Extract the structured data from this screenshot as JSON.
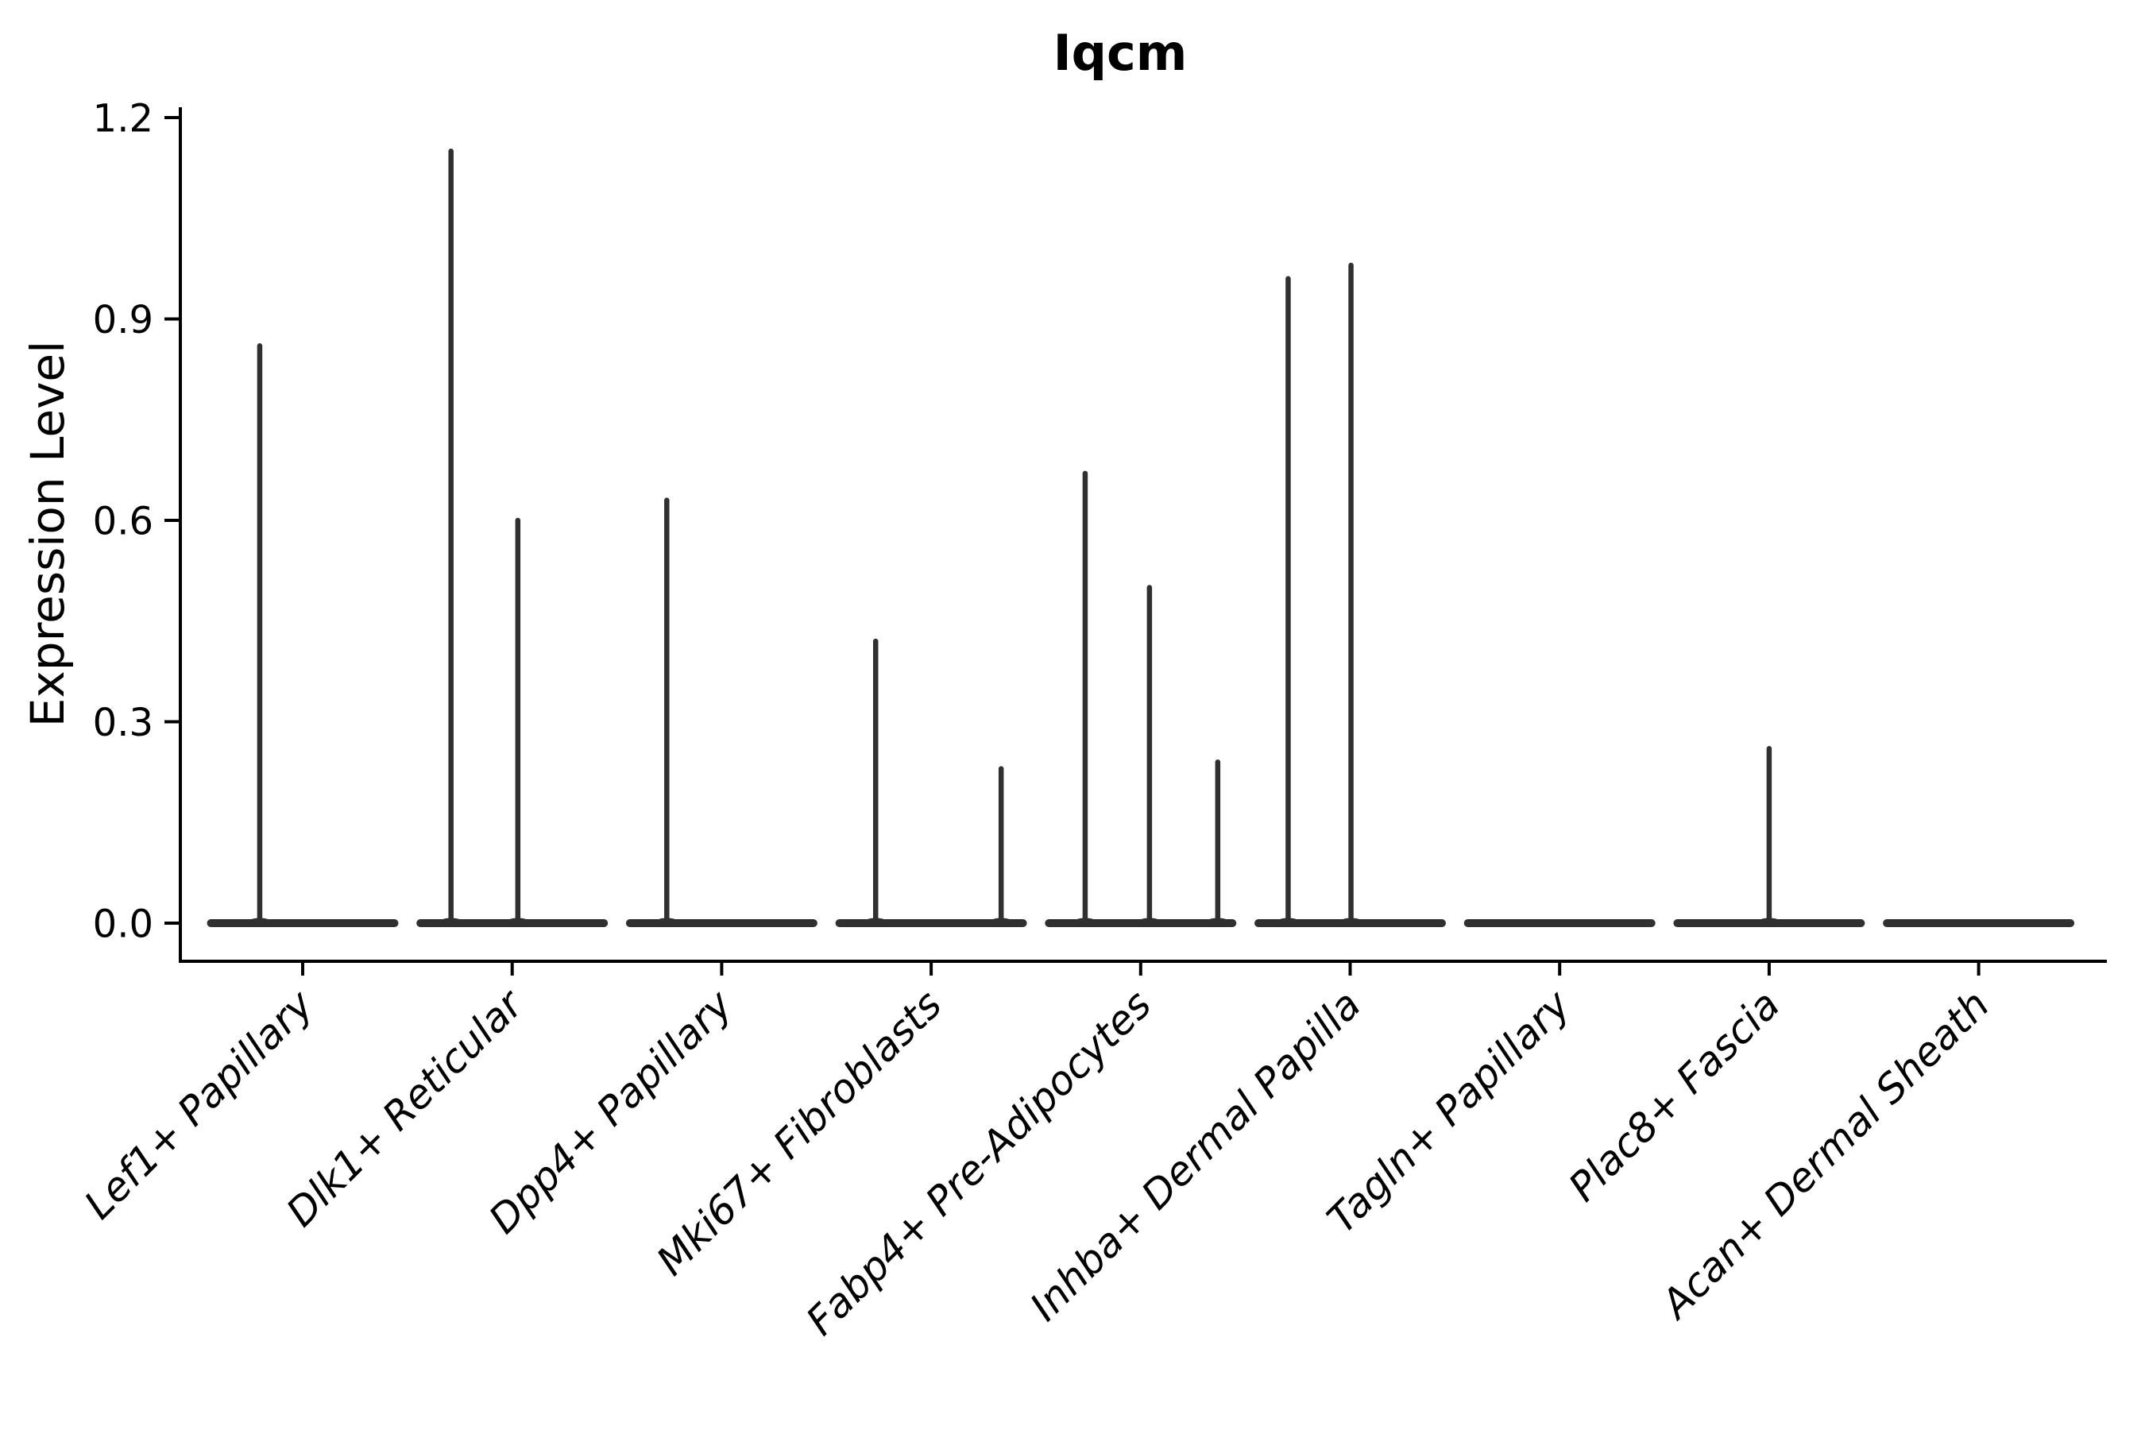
{
  "figure": {
    "kind": "violin-plot-figure"
  },
  "chart_data": {
    "type": "violin",
    "title": "Iqcm",
    "xlabel": "",
    "ylabel": "Expression Level",
    "ylim": [
      -0.06,
      1.22
    ],
    "grid": false,
    "legend": null,
    "yticks": [
      {
        "value": 0.0,
        "label": "0.0"
      },
      {
        "value": 0.3,
        "label": "0.3"
      },
      {
        "value": 0.6,
        "label": "0.6"
      },
      {
        "value": 0.9,
        "label": "0.9"
      },
      {
        "value": 1.2,
        "label": "1.2"
      }
    ],
    "categories": [
      "Lef1+ Papillary",
      "Dlk1+ Reticular",
      "Dpp4+ Papillary",
      "Mki67+ Fibroblasts",
      "Fabp4+ Pre-Adipocytes",
      "Inhba+ Dermal Papilla",
      "Tagln+ Papillary",
      "Plac8+ Fascia",
      "Acan+ Dermal Sheath"
    ],
    "series": [
      {
        "category": "Lef1+ Papillary",
        "baseline_value": 0.0,
        "spikes": [
          {
            "pos": -0.205,
            "value": 0.86
          }
        ]
      },
      {
        "category": "Dlk1+ Reticular",
        "baseline_value": 0.0,
        "spikes": [
          {
            "pos": -0.292,
            "value": 1.15
          },
          {
            "pos": 0.027,
            "value": 0.6
          }
        ]
      },
      {
        "category": "Dpp4+ Papillary",
        "baseline_value": 0.0,
        "spikes": [
          {
            "pos": -0.262,
            "value": 0.63
          }
        ]
      },
      {
        "category": "Mki67+ Fibroblasts",
        "baseline_value": 0.0,
        "spikes": [
          {
            "pos": -0.265,
            "value": 0.42
          },
          {
            "pos": 0.334,
            "value": 0.23
          }
        ]
      },
      {
        "category": "Fabp4+ Pre-Adipocytes",
        "baseline_value": 0.0,
        "spikes": [
          {
            "pos": -0.265,
            "value": 0.67
          },
          {
            "pos": 0.042,
            "value": 0.5
          },
          {
            "pos": 0.368,
            "value": 0.24
          }
        ]
      },
      {
        "category": "Inhba+ Dermal Papilla",
        "baseline_value": 0.0,
        "spikes": [
          {
            "pos": -0.296,
            "value": 0.96
          },
          {
            "pos": 0.004,
            "value": 0.98
          }
        ]
      },
      {
        "category": "Tagln+ Papillary",
        "baseline_value": 0.0,
        "spikes": []
      },
      {
        "category": "Plac8+ Fascia",
        "baseline_value": 0.0,
        "spikes": [
          {
            "pos": 0.0,
            "value": 0.26
          }
        ]
      },
      {
        "category": "Acan+ Dermal Sheath",
        "baseline_value": 0.0,
        "spikes": []
      }
    ],
    "colors": {
      "violin": "#303030",
      "axis": "#000000",
      "text": "#000000",
      "background": "#ffffff"
    }
  }
}
